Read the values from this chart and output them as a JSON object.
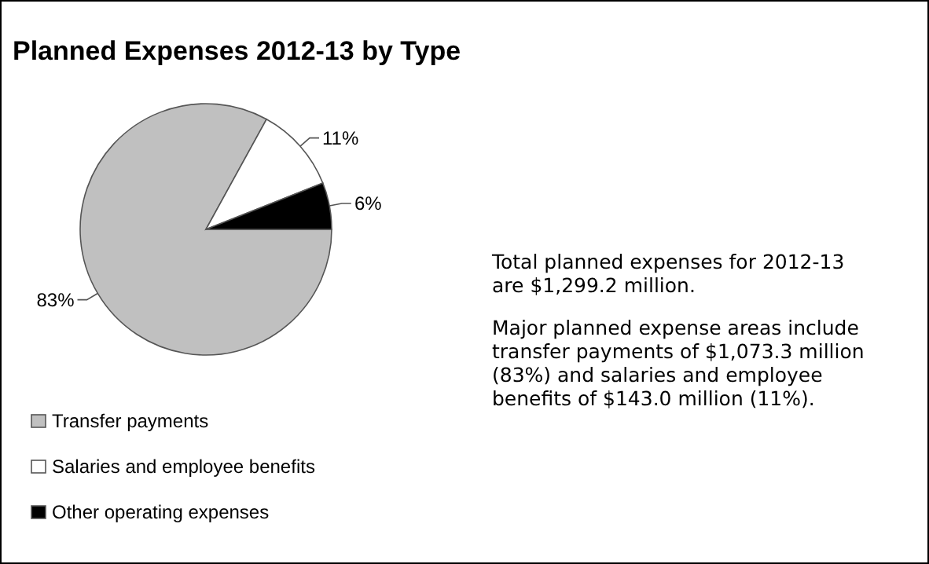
{
  "chart_data": {
    "type": "pie",
    "title": "Planned Expenses 2012-13 by Type",
    "categories": [
      "Transfer payments",
      "Salaries and employee benefits",
      "Other operating expenses"
    ],
    "values": [
      83,
      11,
      6
    ],
    "colors": [
      "#c0c0c0",
      "#ffffff",
      "#000000"
    ],
    "value_labels": [
      "83%",
      "11%",
      "6%"
    ],
    "legend": "bottom left",
    "annotations": [
      "Total planned expenses for 2012-13 are $1,299.2 million.",
      "Major planned expense areas include transfer payments of $1,073.3 million (83%) and salaries and employee benefits of $143.0 million (11%)."
    ]
  }
}
